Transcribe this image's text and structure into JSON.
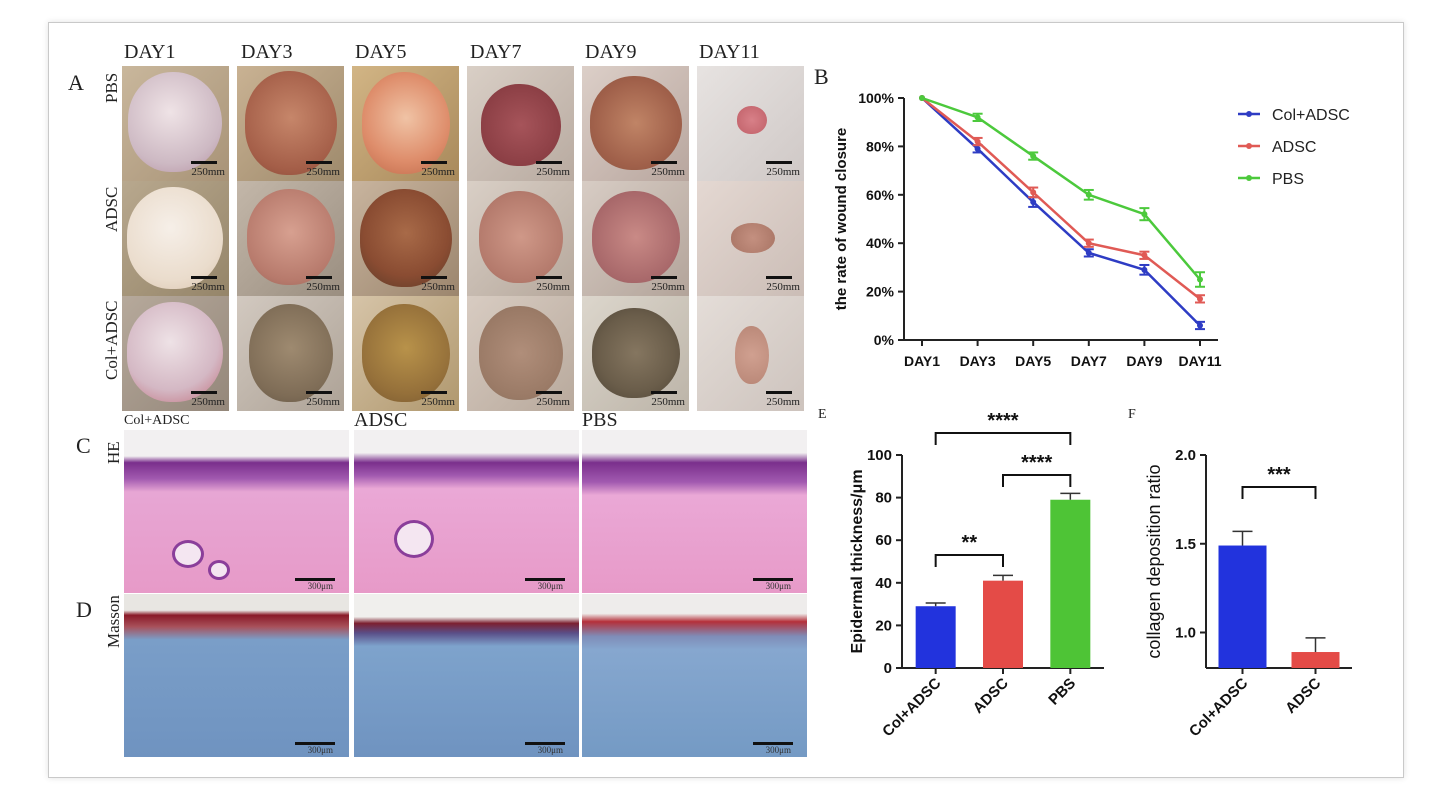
{
  "panels": {
    "A": "A",
    "B": "B",
    "C": "C",
    "D": "D",
    "E": "E",
    "F": "F"
  },
  "panel_a": {
    "days": [
      "DAY1",
      "DAY3",
      "DAY5",
      "DAY7",
      "DAY9",
      "DAY11"
    ],
    "rows": [
      "PBS",
      "ADSC",
      "Col+ADSC"
    ],
    "scale_label": "250mm"
  },
  "panel_c": {
    "row_label": "HE",
    "columns": [
      "Col+ADSC",
      "ADSC",
      "PBS"
    ],
    "scale_label": "300μm"
  },
  "panel_d": {
    "row_label": "Masson",
    "scale_label": "300μm"
  },
  "chart_data": [
    {
      "id": "B",
      "type": "line",
      "ylabel": "the rate of wound closure",
      "xlabel": "",
      "categories": [
        "DAY1",
        "DAY3",
        "DAY5",
        "DAY7",
        "DAY9",
        "DAY11"
      ],
      "yticks": [
        "0%",
        "20%",
        "40%",
        "60%",
        "80%",
        "100%"
      ],
      "ylim": [
        0,
        100
      ],
      "legend_position": "top-right",
      "series": [
        {
          "name": "Col+ADSC",
          "color": "#2e3cc4",
          "values": [
            100,
            79,
            57,
            36,
            29,
            6
          ],
          "errors": [
            0,
            1.5,
            2,
            1.5,
            2,
            1.5
          ]
        },
        {
          "name": "ADSC",
          "color": "#e05a55",
          "values": [
            100,
            82,
            61,
            40,
            35,
            17
          ],
          "errors": [
            0,
            1.5,
            2,
            1.5,
            1.5,
            1.5
          ]
        },
        {
          "name": "PBS",
          "color": "#4cc93c",
          "values": [
            100,
            92,
            76,
            60,
            52,
            25
          ],
          "errors": [
            0,
            1.5,
            1.5,
            2,
            2.5,
            3
          ]
        }
      ]
    },
    {
      "id": "E",
      "type": "bar",
      "ylabel": "Epidermal thickness/μm",
      "categories": [
        "Col+ADSC",
        "ADSC",
        "PBS"
      ],
      "values": [
        29,
        41,
        79
      ],
      "errors": [
        1.5,
        2.5,
        3
      ],
      "colors": [
        "#2233dd",
        "#e44b47",
        "#4ec436"
      ],
      "ylim": [
        0,
        100
      ],
      "yticks": [
        "0",
        "20",
        "40",
        "60",
        "80",
        "100"
      ],
      "significance": [
        {
          "from": 0,
          "to": 1,
          "label": "**"
        },
        {
          "from": 1,
          "to": 2,
          "label": "****"
        },
        {
          "from": 0,
          "to": 2,
          "label": "****"
        }
      ]
    },
    {
      "id": "F",
      "type": "bar",
      "ylabel": "collagen deposition ratio",
      "categories": [
        "Col+ADSC",
        "ADSC"
      ],
      "values": [
        1.49,
        0.89
      ],
      "errors": [
        0.08,
        0.08
      ],
      "colors": [
        "#2233dd",
        "#e44b47"
      ],
      "ylim": [
        0.8,
        2.0
      ],
      "yticks": [
        "1.0",
        "1.5",
        "2.0"
      ],
      "significance": [
        {
          "from": 0,
          "to": 1,
          "label": "***"
        }
      ]
    }
  ]
}
